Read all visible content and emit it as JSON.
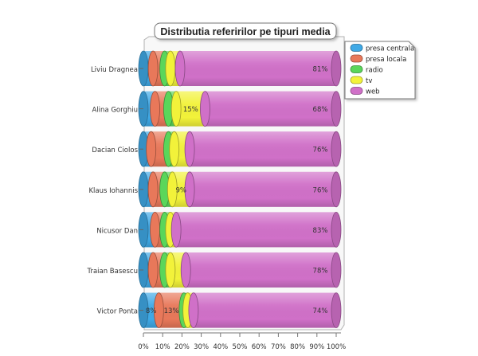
{
  "chart_data": {
    "type": "bar",
    "orientation": "horizontal",
    "stacked": "percent",
    "title": "Distributia referirilor pe tipuri media",
    "categories": [
      "Liviu Dragnea",
      "Alina Gorghiu",
      "Dacian Ciolos",
      "Klaus Iohannis",
      "Nicusor Dan",
      "Traian Basescu",
      "Victor Ponta"
    ],
    "series": [
      {
        "name": "presa centrala",
        "color": "#3fa9e6",
        "values": [
          5,
          6,
          4,
          5,
          6,
          5,
          8
        ]
      },
      {
        "name": "presa locala",
        "color": "#e8785a",
        "values": [
          6,
          7,
          9,
          6,
          5,
          6,
          13
        ]
      },
      {
        "name": "radio",
        "color": "#5ad65a",
        "values": [
          3,
          4,
          3,
          4,
          3,
          3,
          2
        ]
      },
      {
        "name": "tv",
        "color": "#f2f23a",
        "values": [
          5,
          15,
          8,
          9,
          3,
          8,
          3
        ]
      },
      {
        "name": "web",
        "color": "#d070c8",
        "values": [
          81,
          68,
          76,
          76,
          83,
          78,
          74
        ]
      }
    ],
    "data_labels": [
      {
        "category": "Liviu Dragnea",
        "series": "web",
        "text": "81%"
      },
      {
        "category": "Alina Gorghiu",
        "series": "tv",
        "text": "15%"
      },
      {
        "category": "Alina Gorghiu",
        "series": "web",
        "text": "68%"
      },
      {
        "category": "Dacian Ciolos",
        "series": "web",
        "text": "76%"
      },
      {
        "category": "Klaus Iohannis",
        "series": "tv",
        "text": "9%"
      },
      {
        "category": "Klaus Iohannis",
        "series": "web",
        "text": "76%"
      },
      {
        "category": "Nicusor Dan",
        "series": "web",
        "text": "83%"
      },
      {
        "category": "Traian Basescu",
        "series": "web",
        "text": "78%"
      },
      {
        "category": "Victor Ponta",
        "series": "presa centrala",
        "text": "8%"
      },
      {
        "category": "Victor Ponta",
        "series": "presa locala",
        "text": "13%"
      },
      {
        "category": "Victor Ponta",
        "series": "web",
        "text": "74%"
      }
    ],
    "xlim": [
      0,
      100
    ],
    "xticks": [
      "0%",
      "10%",
      "20%",
      "30%",
      "40%",
      "50%",
      "60%",
      "70%",
      "80%",
      "90%",
      "100%"
    ],
    "grid": false,
    "legend_position": "top-right"
  }
}
